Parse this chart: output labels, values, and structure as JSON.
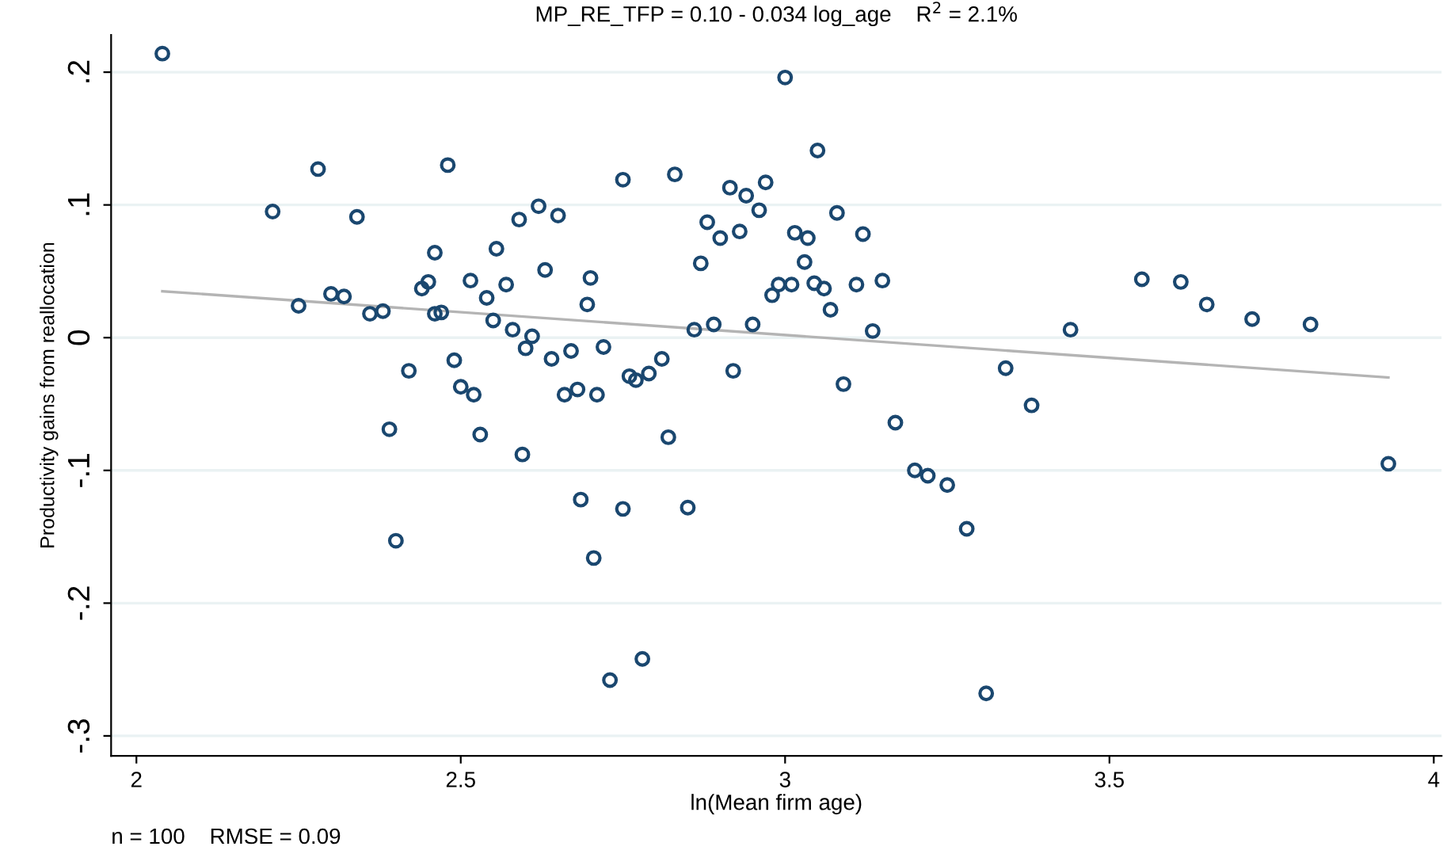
{
  "chart_data": {
    "type": "scatter",
    "title": "MP_RE_TFP = 0.10 - 0.034 log_age    R$^{2}$ = 2.1%",
    "xlabel": "ln(Mean firm age)",
    "ylabel": "Productivity gains from reallocation",
    "annotations": [
      "n = 100    RMSE = 0.09"
    ],
    "xlim": [
      1.961,
      4.012
    ],
    "ylim": [
      -0.315,
      0.228
    ],
    "xticks": [
      2,
      2.5,
      3,
      3.5,
      4
    ],
    "yticks": [
      {
        "value": -0.3,
        "label": "-.3"
      },
      {
        "value": -0.2,
        "label": "-.2"
      },
      {
        "value": -0.1,
        "label": "-.1"
      },
      {
        "value": 0,
        "label": "0"
      },
      {
        "value": 0.1,
        "label": ".1"
      },
      {
        "value": 0.2,
        "label": ".2"
      }
    ],
    "grid": "y",
    "legend": false,
    "series": [
      {
        "marker": "circle",
        "color": "#1a476f",
        "x": [
          2.04,
          2.21,
          2.25,
          2.28,
          2.3,
          2.32,
          2.34,
          2.36,
          2.38,
          2.39,
          2.4,
          2.42,
          2.44,
          2.45,
          2.46,
          2.46,
          2.47,
          2.48,
          2.49,
          2.5,
          2.515,
          2.52,
          2.53,
          2.54,
          2.55,
          2.555,
          2.57,
          2.58,
          2.59,
          2.595,
          2.6,
          2.61,
          2.62,
          2.63,
          2.64,
          2.65,
          2.66,
          2.67,
          2.68,
          2.685,
          2.695,
          2.7,
          2.705,
          2.71,
          2.72,
          2.73,
          2.75,
          2.75,
          2.76,
          2.77,
          2.78,
          2.79,
          2.81,
          2.82,
          2.83,
          2.85,
          2.86,
          2.87,
          2.88,
          2.89,
          2.9,
          2.915,
          2.92,
          2.93,
          2.94,
          2.95,
          2.96,
          2.97,
          2.98,
          2.99,
          3.0,
          3.01,
          3.015,
          3.03,
          3.035,
          3.045,
          3.05,
          3.06,
          3.07,
          3.08,
          3.09,
          3.11,
          3.12,
          3.135,
          3.15,
          3.17,
          3.2,
          3.22,
          3.25,
          3.28,
          3.31,
          3.34,
          3.38,
          3.44,
          3.55,
          3.61,
          3.65,
          3.72,
          3.81,
          3.93
        ],
        "values": [
          0.214,
          0.095,
          0.024,
          0.127,
          0.033,
          0.031,
          0.091,
          0.018,
          0.02,
          -0.069,
          -0.153,
          -0.025,
          0.037,
          0.042,
          0.064,
          0.018,
          0.019,
          0.13,
          -0.017,
          -0.037,
          0.043,
          -0.043,
          -0.073,
          0.03,
          0.013,
          0.067,
          0.04,
          0.006,
          0.089,
          -0.088,
          -0.008,
          0.001,
          0.099,
          0.051,
          -0.016,
          0.092,
          -0.043,
          -0.01,
          -0.039,
          -0.122,
          0.025,
          0.045,
          -0.166,
          -0.043,
          -0.007,
          -0.258,
          -0.129,
          0.119,
          -0.029,
          -0.032,
          -0.242,
          -0.027,
          -0.016,
          -0.075,
          0.123,
          -0.128,
          0.006,
          0.056,
          0.087,
          0.01,
          0.075,
          0.113,
          -0.025,
          0.08,
          0.107,
          0.01,
          0.096,
          0.117,
          0.032,
          0.04,
          0.196,
          0.04,
          0.079,
          0.057,
          0.075,
          0.041,
          0.141,
          0.037,
          0.021,
          0.094,
          -0.035,
          0.04,
          0.078,
          0.005,
          0.043,
          -0.064,
          -0.1,
          -0.104,
          -0.111,
          -0.144,
          -0.268,
          -0.023,
          -0.051,
          0.006,
          0.044,
          0.042,
          0.025,
          0.014,
          0.01,
          -0.095
        ]
      },
      {
        "type": "line",
        "marker": "none",
        "line_style": "solid",
        "color": "#b4b4b4",
        "x": [
          2.04,
          3.93
        ],
        "values": [
          0.035,
          -0.03
        ]
      }
    ]
  }
}
